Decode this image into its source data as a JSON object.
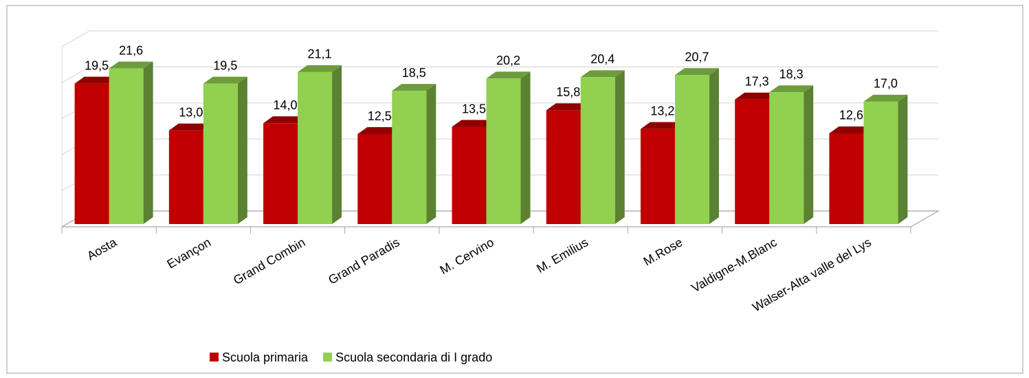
{
  "chart_data": {
    "type": "bar3d",
    "categories": [
      "Aosta",
      "Evançon",
      "Grand Combin",
      "Grand Paradis",
      "M. Cervino",
      "M. Emilius",
      "M.Rose",
      "Valdigne-M.Blanc",
      "Walser-Alta valle del Lys"
    ],
    "series": [
      {
        "name": "Scuola primaria",
        "color": "#c00000",
        "values": [
          19.5,
          13.0,
          14.0,
          12.5,
          13.5,
          15.8,
          13.2,
          17.3,
          12.6
        ],
        "value_labels": [
          "19,5",
          "13,0",
          "14,0",
          "12,5",
          "13,5",
          "15,8",
          "13,2",
          "17,3",
          "12,6"
        ]
      },
      {
        "name": "Scuola secondaria di I grado",
        "color": "#92d050",
        "values": [
          21.6,
          19.5,
          21.1,
          18.5,
          20.2,
          20.4,
          20.7,
          18.3,
          17.0
        ],
        "value_labels": [
          "21,6",
          "19,5",
          "21,1",
          "18,5",
          "20,2",
          "20,4",
          "20,7",
          "18,3",
          "17,0"
        ]
      }
    ],
    "ylim": [
      0,
      25
    ],
    "yticks": [
      0,
      5,
      10,
      15,
      20,
      25
    ],
    "grid": true,
    "legend": "bottom"
  }
}
